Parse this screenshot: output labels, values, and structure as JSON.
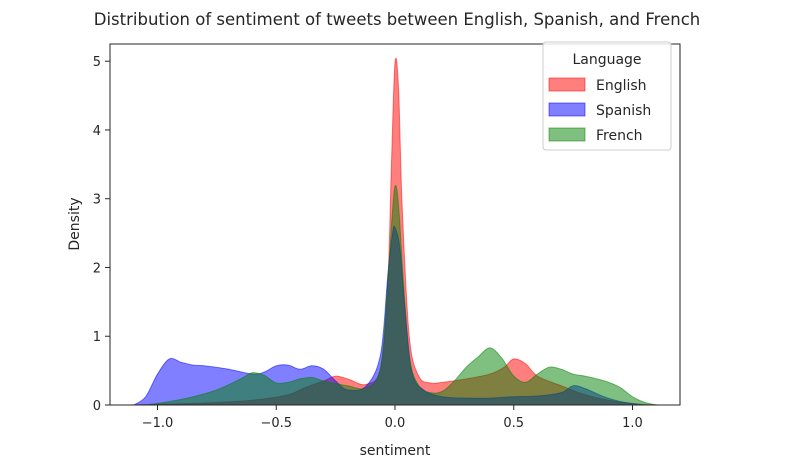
{
  "chart_data": {
    "type": "area",
    "title": "Distribution of sentiment of tweets between English, Spanish, and French",
    "xlabel": "sentiment",
    "ylabel": "Density",
    "xlim": [
      -1.2,
      1.2
    ],
    "ylim": [
      0,
      5.25
    ],
    "xticks": [
      -1.0,
      -0.5,
      0.0,
      0.5,
      1.0
    ],
    "xtick_labels": [
      "−1.0",
      "−0.5",
      "0.0",
      "0.5",
      "1.0"
    ],
    "yticks": [
      0,
      1,
      2,
      3,
      4,
      5
    ],
    "ytick_labels": [
      "0",
      "1",
      "2",
      "3",
      "4",
      "5"
    ],
    "grid": false,
    "legend": {
      "title": "Language",
      "placement": "top-right"
    },
    "series": [
      {
        "name": "English",
        "color": "#ff0000",
        "points": [
          [
            -1.12,
            0
          ],
          [
            -1.0,
            0.01
          ],
          [
            -0.8,
            0.03
          ],
          [
            -0.6,
            0.07
          ],
          [
            -0.45,
            0.15
          ],
          [
            -0.38,
            0.25
          ],
          [
            -0.3,
            0.35
          ],
          [
            -0.25,
            0.42
          ],
          [
            -0.2,
            0.38
          ],
          [
            -0.12,
            0.3
          ],
          [
            -0.06,
            0.55
          ],
          [
            -0.03,
            1.8
          ],
          [
            -0.015,
            3.5
          ],
          [
            0.0,
            4.98
          ],
          [
            0.015,
            4.6
          ],
          [
            0.03,
            2.9
          ],
          [
            0.06,
            1.0
          ],
          [
            0.1,
            0.42
          ],
          [
            0.15,
            0.32
          ],
          [
            0.2,
            0.33
          ],
          [
            0.3,
            0.38
          ],
          [
            0.4,
            0.45
          ],
          [
            0.46,
            0.55
          ],
          [
            0.5,
            0.67
          ],
          [
            0.55,
            0.6
          ],
          [
            0.6,
            0.42
          ],
          [
            0.7,
            0.28
          ],
          [
            0.8,
            0.15
          ],
          [
            0.9,
            0.07
          ],
          [
            1.0,
            0.02
          ],
          [
            1.12,
            0
          ]
        ]
      },
      {
        "name": "Spanish",
        "color": "#0000ff",
        "points": [
          [
            -1.1,
            0
          ],
          [
            -1.05,
            0.12
          ],
          [
            -1.0,
            0.45
          ],
          [
            -0.95,
            0.67
          ],
          [
            -0.9,
            0.62
          ],
          [
            -0.85,
            0.58
          ],
          [
            -0.8,
            0.57
          ],
          [
            -0.7,
            0.52
          ],
          [
            -0.6,
            0.45
          ],
          [
            -0.55,
            0.48
          ],
          [
            -0.5,
            0.57
          ],
          [
            -0.45,
            0.58
          ],
          [
            -0.4,
            0.52
          ],
          [
            -0.35,
            0.57
          ],
          [
            -0.3,
            0.52
          ],
          [
            -0.25,
            0.35
          ],
          [
            -0.2,
            0.22
          ],
          [
            -0.12,
            0.28
          ],
          [
            -0.06,
            0.75
          ],
          [
            -0.03,
            1.9
          ],
          [
            -0.01,
            2.5
          ],
          [
            0.0,
            2.58
          ],
          [
            0.02,
            2.3
          ],
          [
            0.04,
            1.5
          ],
          [
            0.07,
            0.5
          ],
          [
            0.12,
            0.22
          ],
          [
            0.2,
            0.12
          ],
          [
            0.3,
            0.1
          ],
          [
            0.4,
            0.1
          ],
          [
            0.5,
            0.12
          ],
          [
            0.6,
            0.13
          ],
          [
            0.7,
            0.18
          ],
          [
            0.75,
            0.28
          ],
          [
            0.8,
            0.24
          ],
          [
            0.88,
            0.12
          ],
          [
            0.95,
            0.05
          ],
          [
            1.05,
            0
          ]
        ]
      },
      {
        "name": "French",
        "color": "#008000",
        "points": [
          [
            -1.05,
            0
          ],
          [
            -0.95,
            0.05
          ],
          [
            -0.85,
            0.12
          ],
          [
            -0.75,
            0.22
          ],
          [
            -0.65,
            0.38
          ],
          [
            -0.6,
            0.47
          ],
          [
            -0.55,
            0.43
          ],
          [
            -0.5,
            0.32
          ],
          [
            -0.45,
            0.33
          ],
          [
            -0.4,
            0.38
          ],
          [
            -0.35,
            0.4
          ],
          [
            -0.3,
            0.35
          ],
          [
            -0.2,
            0.28
          ],
          [
            -0.12,
            0.25
          ],
          [
            -0.06,
            0.55
          ],
          [
            -0.03,
            1.8
          ],
          [
            -0.015,
            2.6
          ],
          [
            0.0,
            3.18
          ],
          [
            0.015,
            2.9
          ],
          [
            0.035,
            1.8
          ],
          [
            0.06,
            0.7
          ],
          [
            0.1,
            0.28
          ],
          [
            0.15,
            0.18
          ],
          [
            0.2,
            0.2
          ],
          [
            0.25,
            0.35
          ],
          [
            0.3,
            0.55
          ],
          [
            0.35,
            0.7
          ],
          [
            0.4,
            0.83
          ],
          [
            0.45,
            0.68
          ],
          [
            0.5,
            0.42
          ],
          [
            0.55,
            0.33
          ],
          [
            0.6,
            0.45
          ],
          [
            0.65,
            0.55
          ],
          [
            0.7,
            0.52
          ],
          [
            0.75,
            0.45
          ],
          [
            0.8,
            0.42
          ],
          [
            0.85,
            0.38
          ],
          [
            0.9,
            0.33
          ],
          [
            0.95,
            0.25
          ],
          [
            1.0,
            0.12
          ],
          [
            1.05,
            0.04
          ],
          [
            1.1,
            0
          ]
        ]
      }
    ]
  }
}
